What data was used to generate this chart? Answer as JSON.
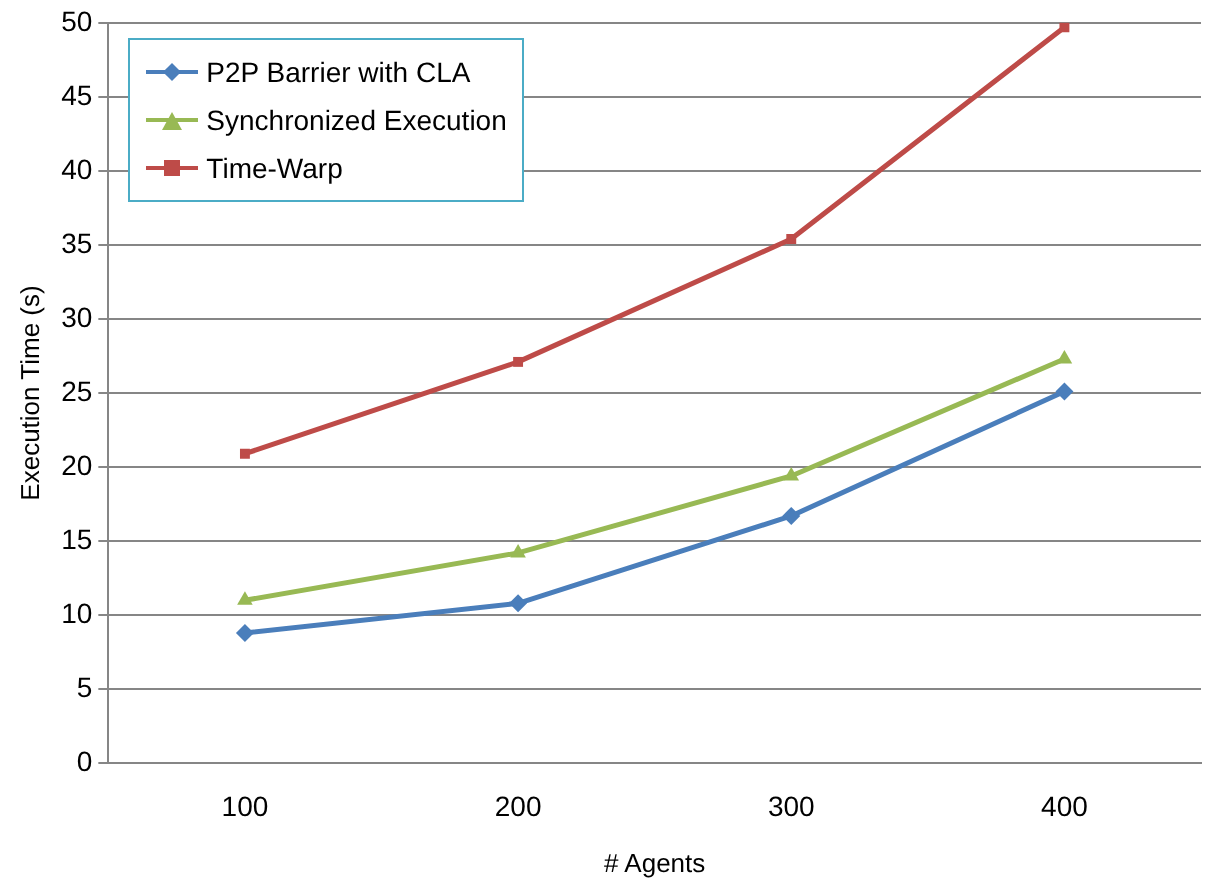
{
  "chart_data": {
    "type": "line",
    "xlabel": "# Agents",
    "ylabel": "Execution Time (s)",
    "categories": [
      "100",
      "200",
      "300",
      "400"
    ],
    "series": [
      {
        "name": "P2P Barrier with CLA",
        "color": "#4a7ebb",
        "marker": "diamond",
        "values": [
          8.8,
          10.8,
          16.7,
          25.1
        ]
      },
      {
        "name": "Synchronized Execution",
        "color": "#98b954",
        "marker": "triangle",
        "values": [
          11.0,
          14.2,
          19.4,
          27.3
        ]
      },
      {
        "name": "Time-Warp",
        "color": "#be4b48",
        "marker": "square",
        "values": [
          20.9,
          27.1,
          35.4,
          49.7
        ]
      }
    ],
    "ylim": [
      0,
      50
    ],
    "yticks": [
      0,
      5,
      10,
      15,
      20,
      25,
      30,
      35,
      40,
      45,
      50
    ],
    "grid": "y",
    "legend": "top left",
    "line_style": "solid"
  }
}
